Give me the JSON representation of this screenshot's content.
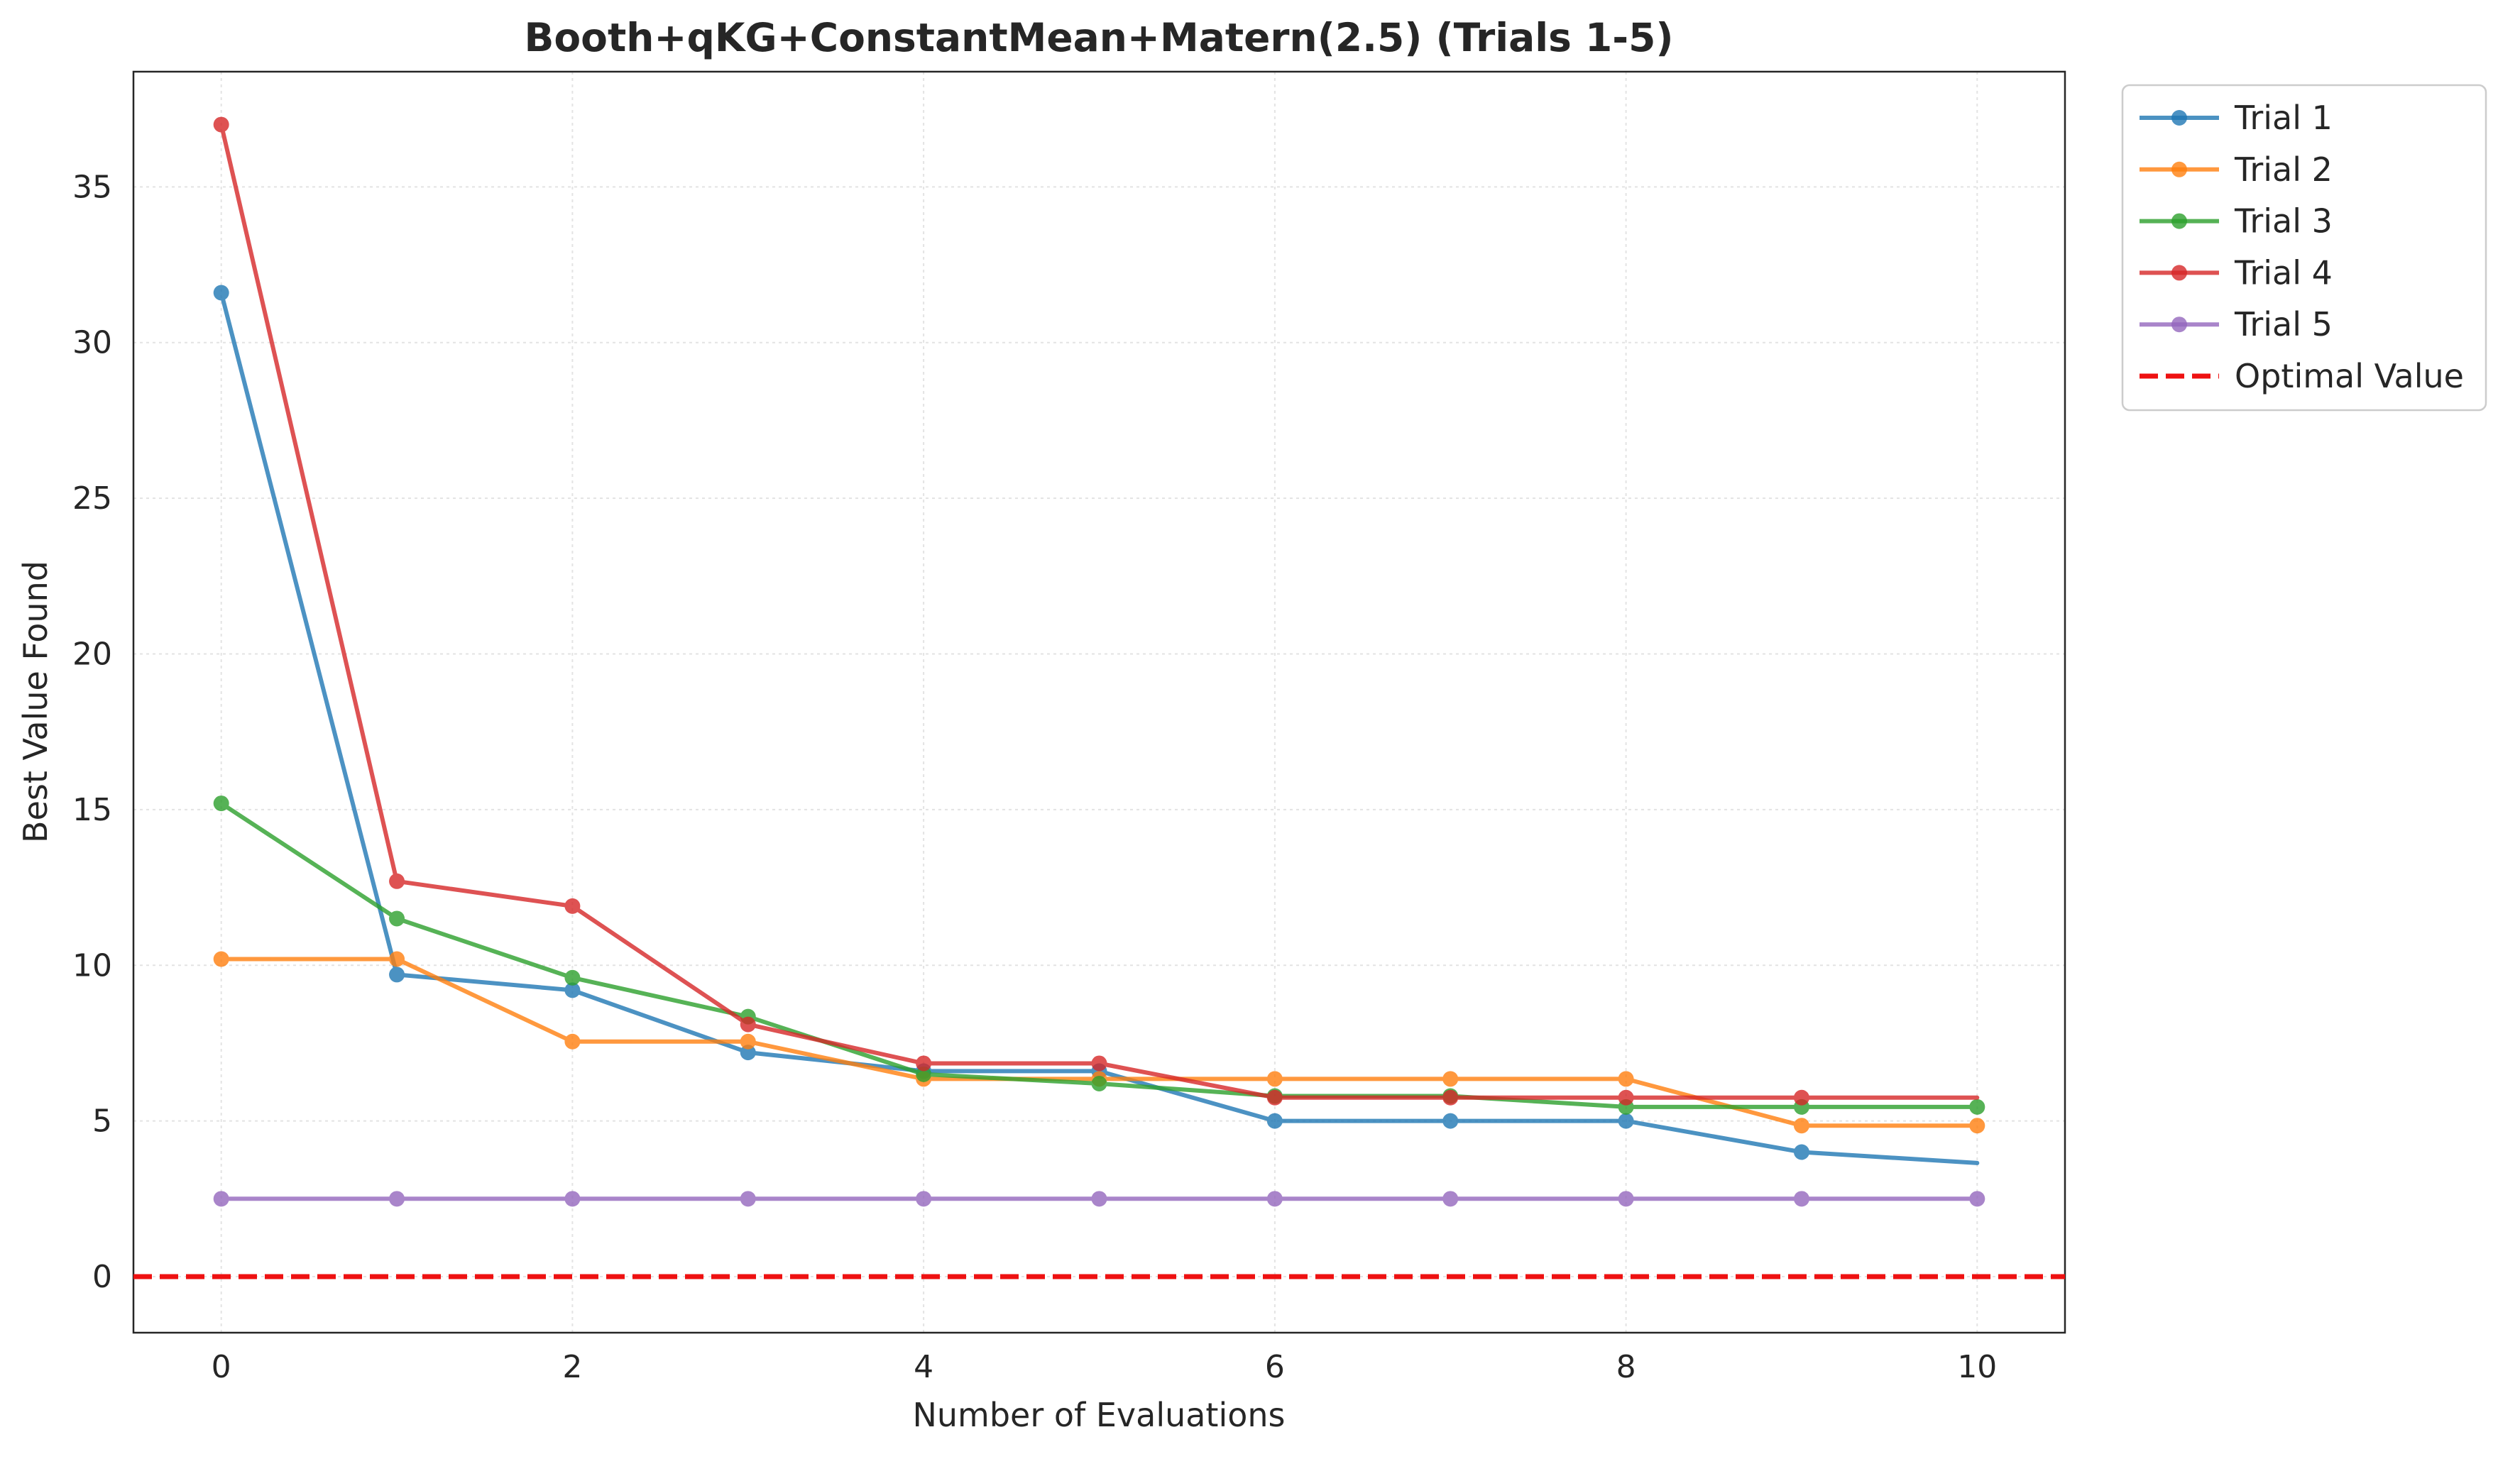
{
  "chart_data": {
    "type": "line",
    "title": "Booth+qKG+ConstantMean+Matern(2.5) (Trials 1-5)",
    "xlabel": "Number of Evaluations",
    "ylabel": "Best Value Found",
    "xlim": [
      -0.5,
      10.5
    ],
    "ylim": [
      -1.8,
      38.7
    ],
    "x_ticks": [
      0,
      2,
      4,
      6,
      8,
      10
    ],
    "y_ticks": [
      0,
      5,
      10,
      15,
      20,
      25,
      30,
      35
    ],
    "grid": true,
    "legend_position": "outside-top-right",
    "x": [
      0,
      1,
      2,
      3,
      4,
      5,
      6,
      7,
      8,
      9,
      10
    ],
    "series": [
      {
        "name": "Trial 1",
        "color": "#1f77b4",
        "values": [
          31.6,
          9.7,
          9.2,
          7.2,
          6.6,
          6.6,
          5.0,
          5.0,
          5.0,
          4.0,
          3.65
        ],
        "marker_last": false
      },
      {
        "name": "Trial 2",
        "color": "#ff7f0e",
        "values": [
          10.2,
          10.2,
          7.55,
          7.55,
          6.35,
          6.35,
          6.35,
          6.35,
          6.35,
          4.85,
          4.85
        ],
        "marker_last": true
      },
      {
        "name": "Trial 3",
        "color": "#2ca02c",
        "values": [
          15.2,
          11.5,
          9.6,
          8.35,
          6.5,
          6.2,
          5.8,
          5.8,
          5.45,
          5.45,
          5.45
        ],
        "marker_last": true
      },
      {
        "name": "Trial 4",
        "color": "#d62728",
        "values": [
          37.0,
          12.7,
          11.9,
          8.1,
          6.85,
          6.85,
          5.75,
          5.75,
          5.75,
          5.75,
          5.75
        ],
        "marker_last": false
      },
      {
        "name": "Trial 5",
        "color": "#9467bd",
        "values": [
          2.5,
          2.5,
          2.5,
          2.5,
          2.5,
          2.5,
          2.5,
          2.5,
          2.5,
          2.5,
          2.5
        ],
        "marker_last": true
      }
    ],
    "reference_line": {
      "name": "Optimal Value",
      "y": 0,
      "color": "#ee1111",
      "style": "dashed"
    }
  }
}
